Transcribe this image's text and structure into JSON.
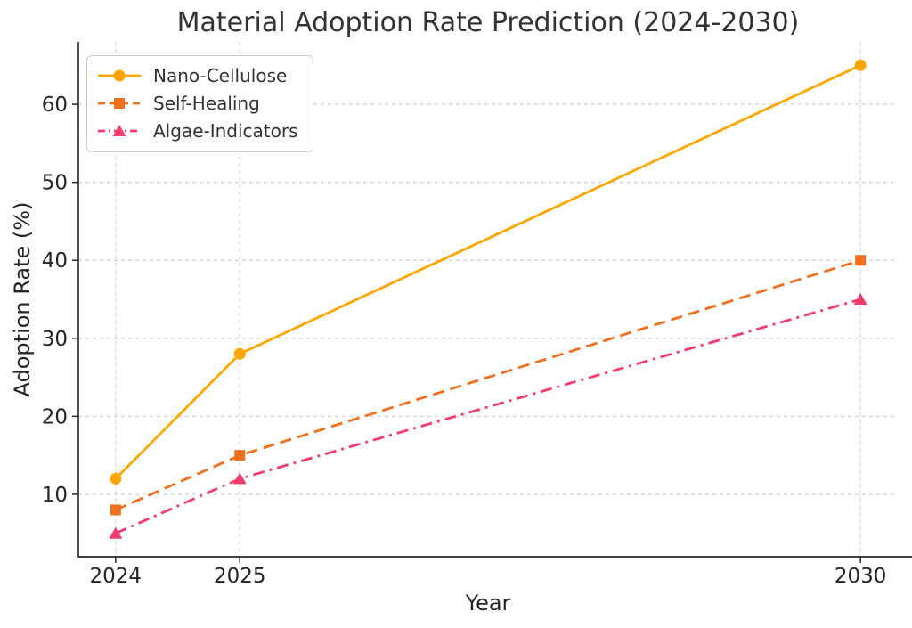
{
  "chart_data": {
    "type": "line",
    "title": "Material Adoption Rate Prediction (2024-2030)",
    "xlabel": "Year",
    "ylabel": "Adoption Rate (%)",
    "x": [
      2024,
      2025,
      2030
    ],
    "x_ticks": [
      2024,
      2025,
      2030
    ],
    "x_tick_labels": [
      "2024",
      "2025",
      "2030"
    ],
    "y_ticks": [
      10,
      20,
      30,
      40,
      50,
      60
    ],
    "y_tick_labels": [
      "10",
      "20",
      "30",
      "40",
      "50",
      "60"
    ],
    "xlim": [
      2023.7,
      2030.3
    ],
    "ylim": [
      2,
      68
    ],
    "grid": true,
    "grid_style": "dashed",
    "legend_position": "upper-left",
    "series": [
      {
        "name": "Nano-Cellulose",
        "values": [
          12,
          28,
          65
        ],
        "color": "#FFA500",
        "line_style": "solid",
        "marker": "circle"
      },
      {
        "name": "Self-Healing",
        "values": [
          8,
          15,
          40
        ],
        "color": "#F0701E",
        "line_style": "dashed",
        "marker": "square"
      },
      {
        "name": "Algae-Indicators",
        "values": [
          5,
          12,
          35
        ],
        "color": "#F23D6C",
        "line_style": "dashdot",
        "marker": "triangle"
      }
    ],
    "colors": {
      "background": "#ffffff",
      "grid": "#cccccc",
      "spine": "#262626",
      "tick_label": "#262626",
      "title": "#333333"
    }
  }
}
